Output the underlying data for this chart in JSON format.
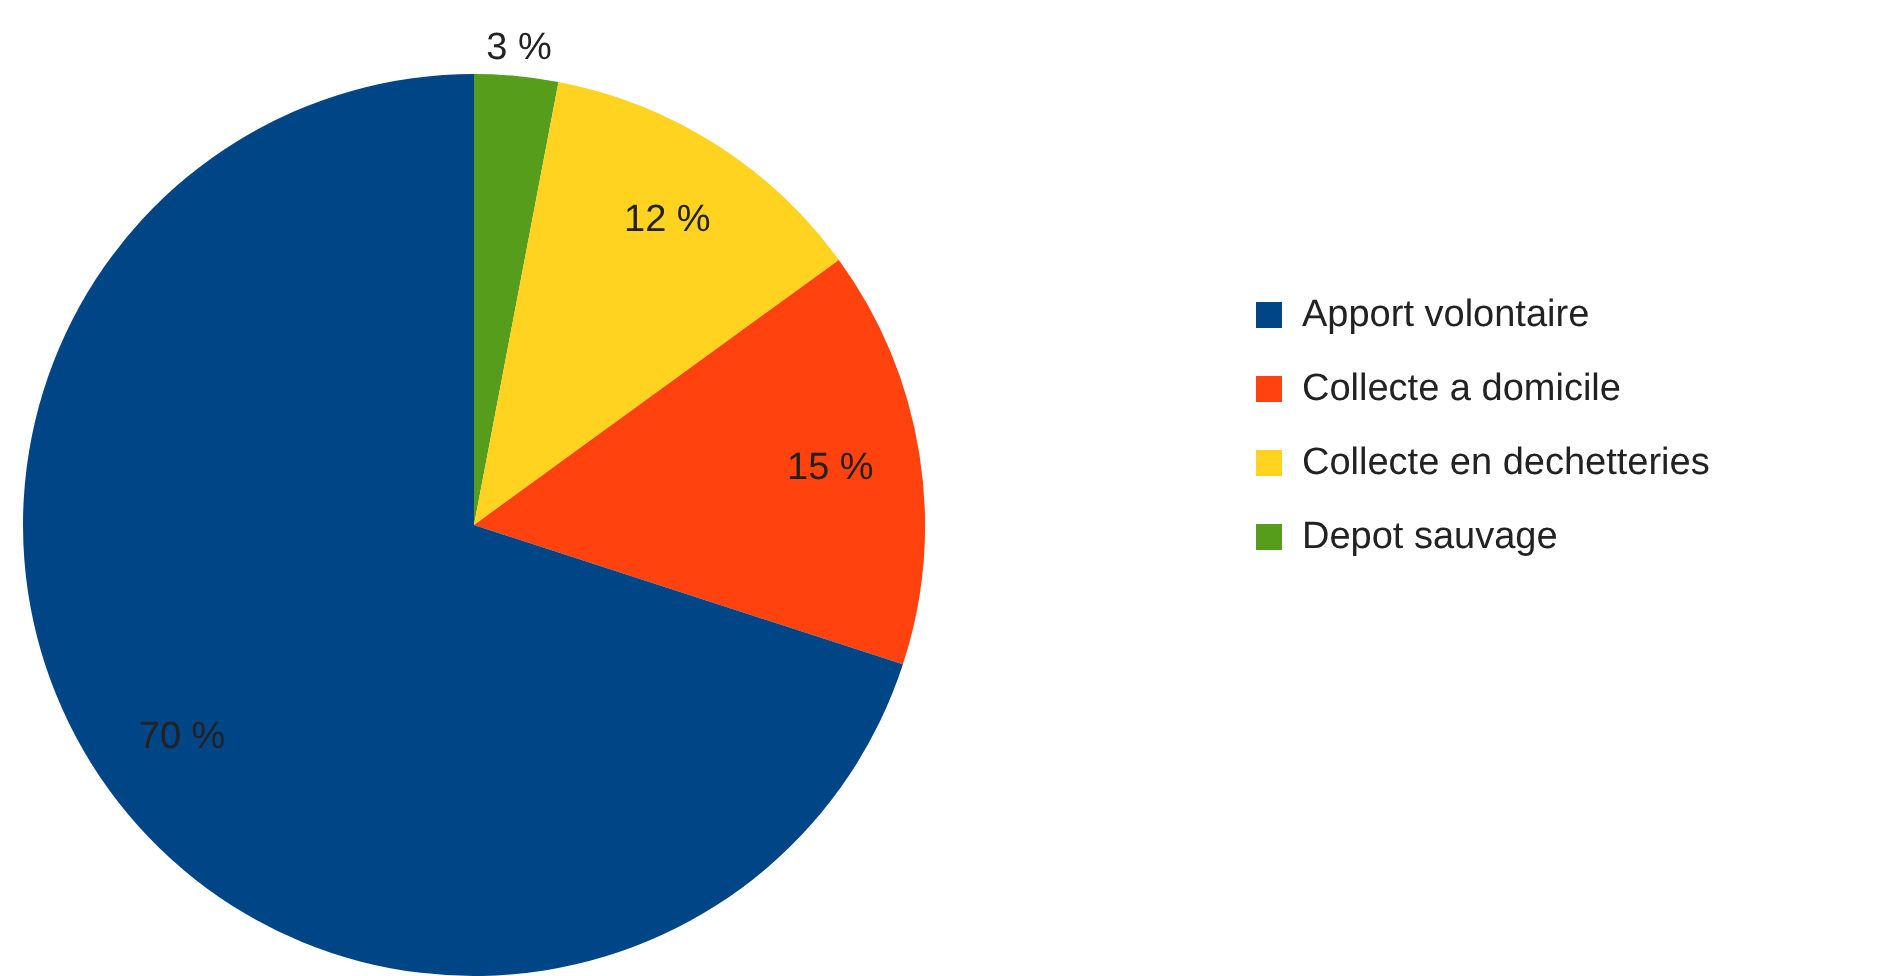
{
  "chart_data": {
    "type": "pie",
    "categories": [
      "Apport volontaire",
      "Collecte a domicile",
      "Collecte en dechetteries",
      "Depot sauvage"
    ],
    "values": [
      70,
      15,
      12,
      3
    ],
    "colors": [
      "#004586",
      "#ff420e",
      "#ffd320",
      "#579d1c"
    ],
    "value_labels": [
      "70 %",
      "15 %",
      "12 %",
      "3 %"
    ],
    "legend": "right"
  }
}
